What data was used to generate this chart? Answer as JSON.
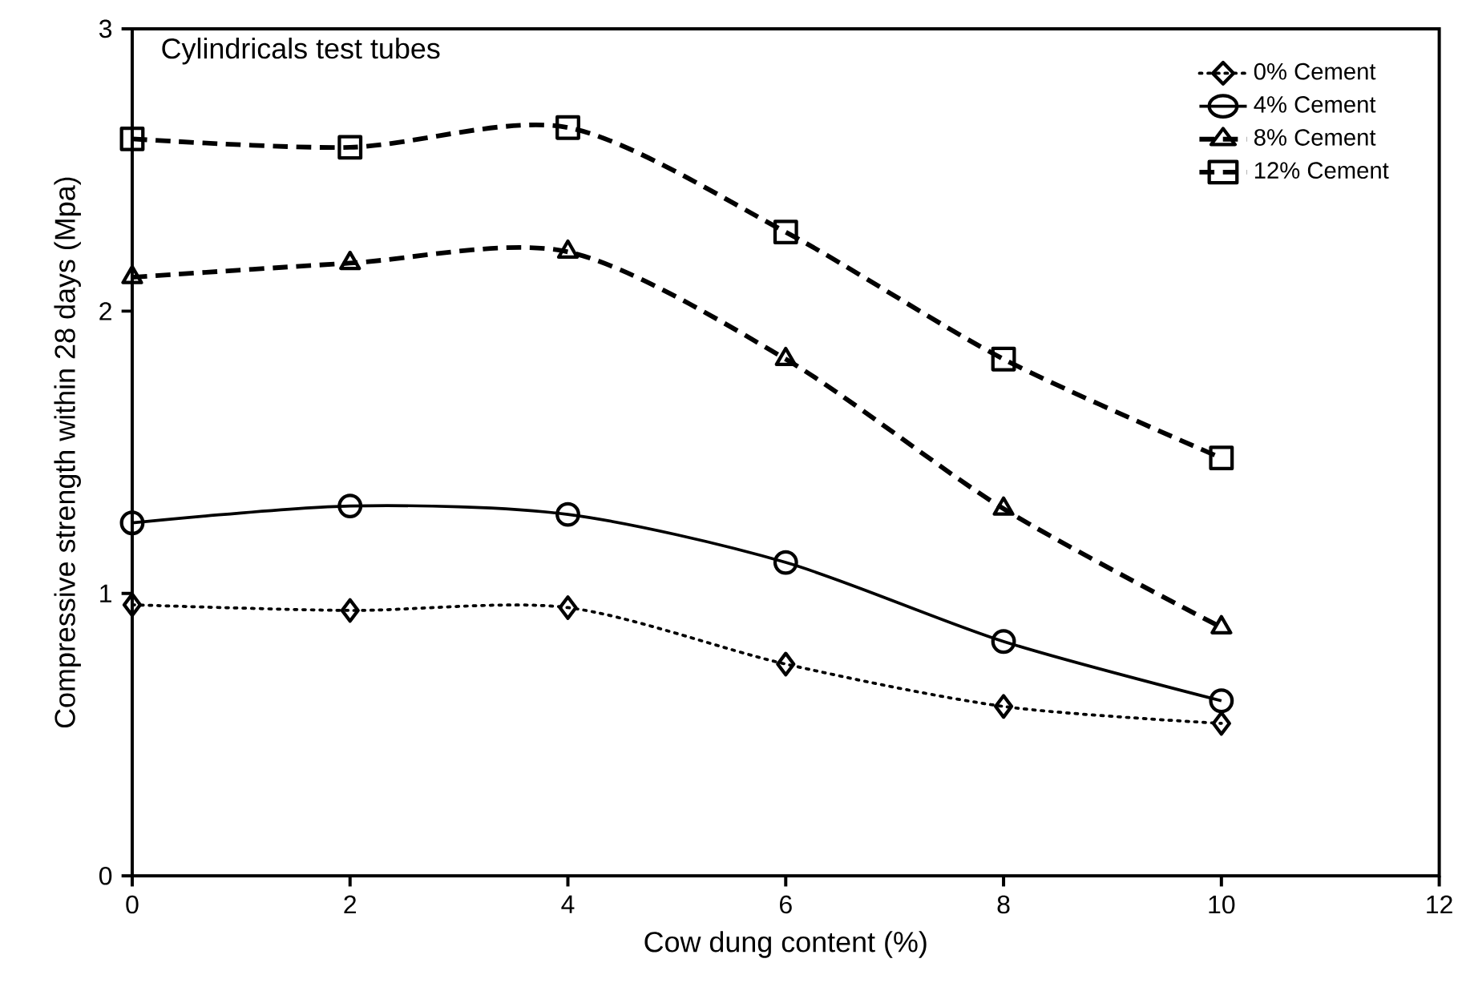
{
  "chart_data": {
    "type": "line",
    "title": "Cylindricals test tubes",
    "xlabel": "Cow dung content (%)",
    "ylabel": "Compressive strength within 28 days (Mpa)",
    "x": [
      0,
      2,
      4,
      6,
      8,
      10
    ],
    "series": [
      {
        "name": "0% Cement",
        "color": "#000000",
        "marker": "diamond",
        "line_style": "dotted",
        "values": [
          0.96,
          0.94,
          0.95,
          0.75,
          0.6,
          0.54
        ]
      },
      {
        "name": "4% Cement",
        "color": "#000000",
        "marker": "circle",
        "line_style": "solid",
        "values": [
          1.25,
          1.31,
          1.28,
          1.11,
          0.83,
          0.62
        ]
      },
      {
        "name": "8% Cement",
        "color": "#000000",
        "marker": "triangle",
        "line_style": "dashed",
        "values": [
          2.12,
          2.17,
          2.21,
          1.83,
          1.3,
          0.88
        ]
      },
      {
        "name": "12% Cement",
        "color": "#000000",
        "marker": "square",
        "line_style": "dashed",
        "values": [
          2.61,
          2.58,
          2.65,
          2.28,
          1.83,
          1.48
        ]
      }
    ],
    "xlim": [
      0,
      12
    ],
    "xticks": [
      0,
      2,
      4,
      6,
      8,
      10,
      12
    ],
    "ylim": [
      0,
      3
    ],
    "yticks": [
      0,
      1,
      2,
      3
    ],
    "grid": false,
    "legend": "top right"
  }
}
